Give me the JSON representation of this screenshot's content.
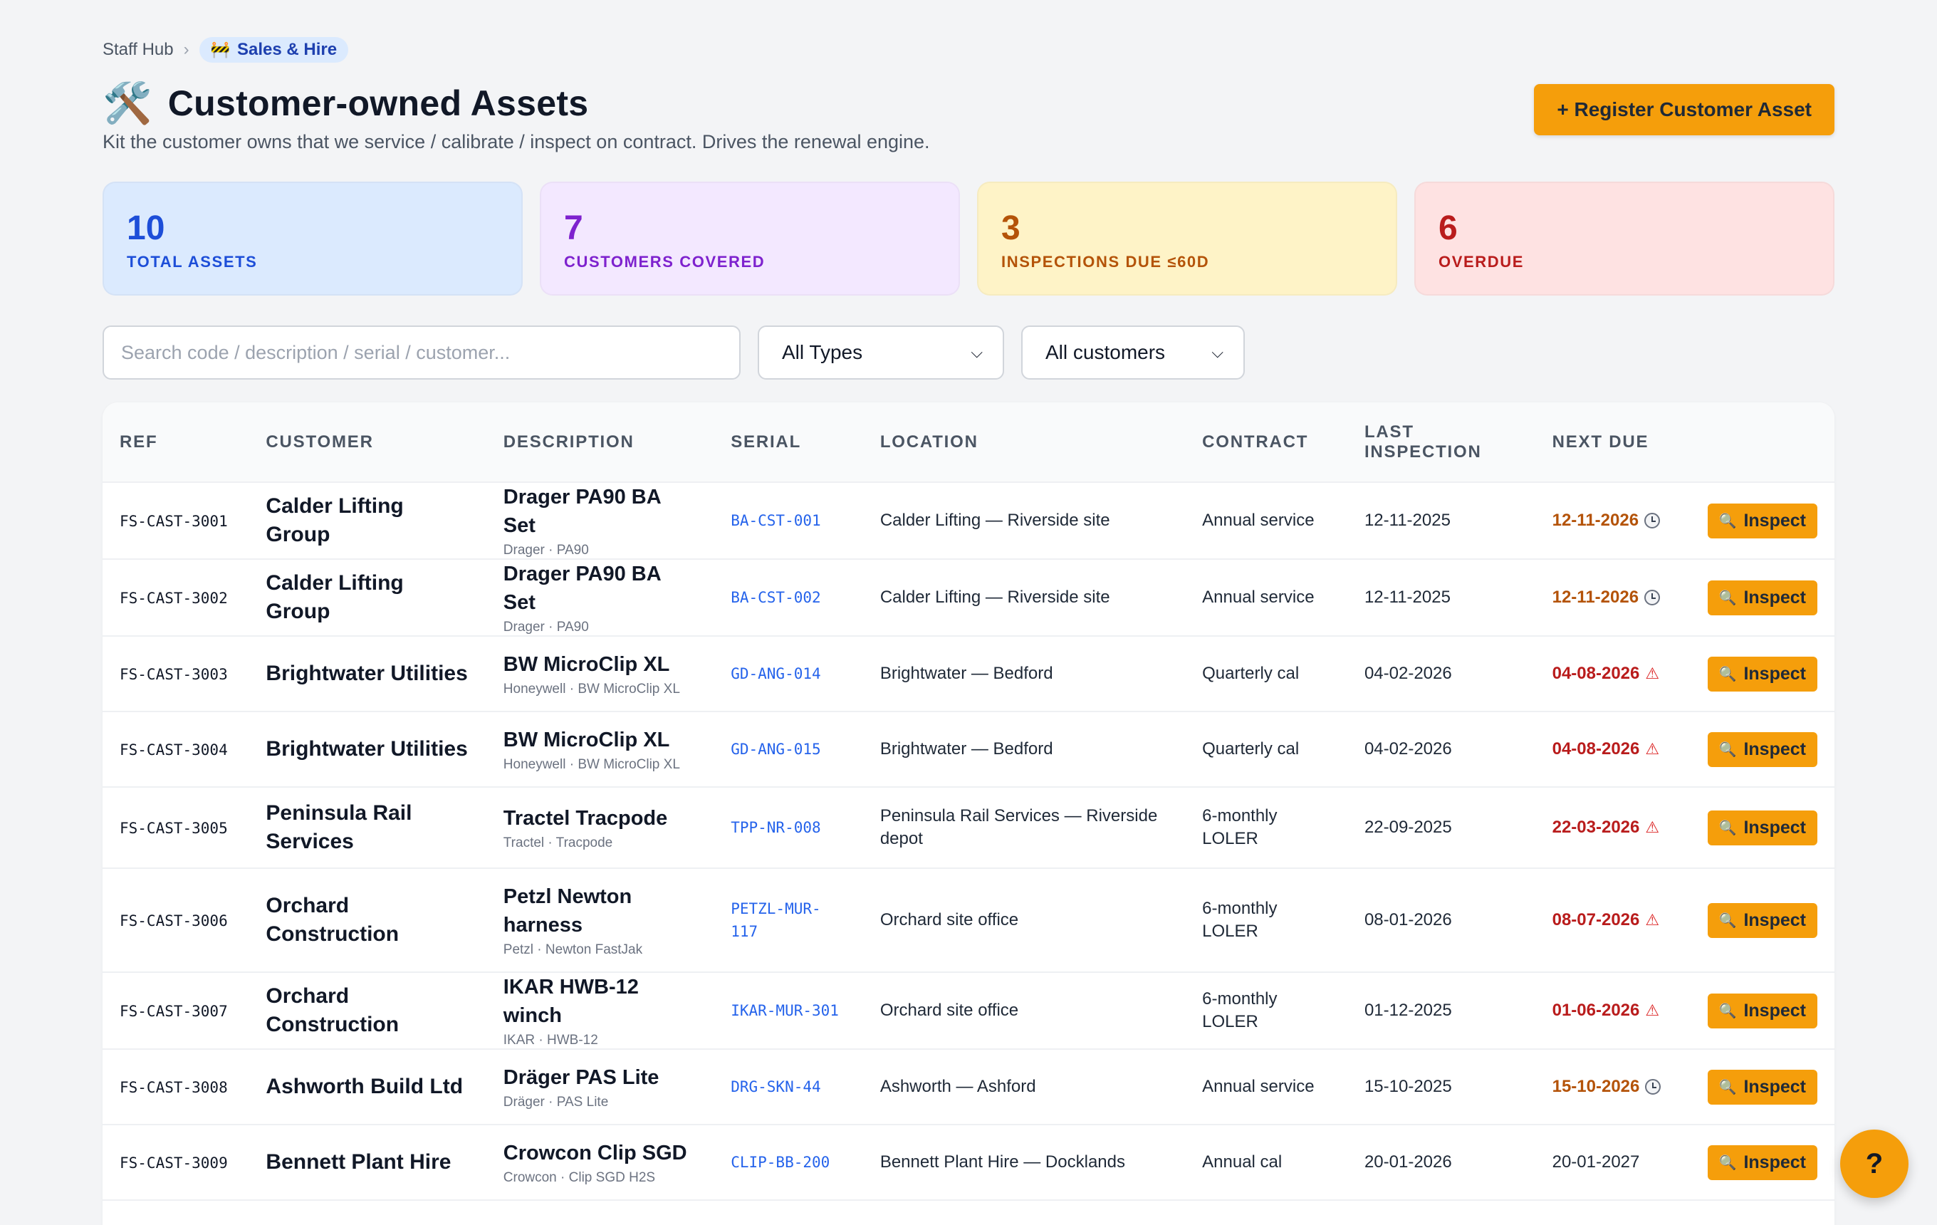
{
  "breadcrumb": {
    "home": "Staff Hub",
    "separator": "›",
    "current_icon": "construction-sign-icon",
    "current_glyph": "🚧",
    "current": "Sales & Hire"
  },
  "header": {
    "icon": "hammer-and-wrench-icon",
    "icon_glyph": "🛠️",
    "title": "Customer-owned Assets",
    "subtitle": "Kit the customer owns that we service / calibrate / inspect on contract. Drives the renewal engine.",
    "register_button": "+ Register Customer Asset"
  },
  "stats": [
    {
      "value": "10",
      "label": "TOTAL ASSETS",
      "bg": "#dbeafe",
      "color": "#1d4ed8"
    },
    {
      "value": "7",
      "label": "CUSTOMERS COVERED",
      "bg": "#f3e8ff",
      "color": "#7e22ce"
    },
    {
      "value": "3",
      "label": "INSPECTIONS DUE ≤60D",
      "bg": "#fef3c7",
      "color": "#b45309"
    },
    {
      "value": "6",
      "label": "OVERDUE",
      "bg": "#fee2e2",
      "color": "#b91c1c"
    }
  ],
  "filters": {
    "search_placeholder": "Search code / description / serial / customer...",
    "type_selected": "All Types",
    "customer_selected": "All customers",
    "chevron": "⌄"
  },
  "table": {
    "columns": [
      "REF",
      "CUSTOMER",
      "DESCRIPTION",
      "SERIAL",
      "LOCATION",
      "CONTRACT",
      "LAST INSPECTION",
      "NEXT DUE",
      ""
    ],
    "action_label": "Inspect",
    "action_icon": "magnifier-icon",
    "rows": [
      {
        "ref": "FS-CAST-3001",
        "customer": "Calder Lifting Group",
        "desc": "Drager PA90 BA Set",
        "sub": "Drager · PA90",
        "serial": "BA-CST-001",
        "location": "Calder Lifting — Riverside site",
        "contract": "Annual service",
        "last": "12-11-2025",
        "next": "12-11-2026",
        "status": "warn"
      },
      {
        "ref": "FS-CAST-3002",
        "customer": "Calder Lifting Group",
        "desc": "Drager PA90 BA Set",
        "sub": "Drager · PA90",
        "serial": "BA-CST-002",
        "location": "Calder Lifting — Riverside site",
        "contract": "Annual service",
        "last": "12-11-2025",
        "next": "12-11-2026",
        "status": "warn"
      },
      {
        "ref": "FS-CAST-3003",
        "customer": "Brightwater Utilities",
        "desc": "BW MicroClip XL",
        "sub": "Honeywell · BW MicroClip XL",
        "serial": "GD-ANG-014",
        "location": "Brightwater — Bedford",
        "contract": "Quarterly cal",
        "last": "04-02-2026",
        "next": "04-08-2026",
        "status": "over"
      },
      {
        "ref": "FS-CAST-3004",
        "customer": "Brightwater Utilities",
        "desc": "BW MicroClip XL",
        "sub": "Honeywell · BW MicroClip XL",
        "serial": "GD-ANG-015",
        "location": "Brightwater — Bedford",
        "contract": "Quarterly cal",
        "last": "04-02-2026",
        "next": "04-08-2026",
        "status": "over"
      },
      {
        "ref": "FS-CAST-3005",
        "customer": "Peninsula Rail Services",
        "desc": "Tractel Tracpode",
        "sub": "Tractel · Tracpode",
        "serial": "TPP-NR-008",
        "location": "Peninsula Rail Services — Riverside depot",
        "contract": "6-monthly LOLER",
        "last": "22-09-2025",
        "next": "22-03-2026",
        "status": "over",
        "height": "tall"
      },
      {
        "ref": "FS-CAST-3006",
        "customer": "Orchard Construction",
        "desc": "Petzl Newton harness",
        "sub": "Petzl · Newton FastJak",
        "serial": "PETZL-MUR-117",
        "location": "Orchard site office",
        "contract": "6-monthly LOLER",
        "last": "08-01-2026",
        "next": "08-07-2026",
        "status": "over",
        "height": "xtall"
      },
      {
        "ref": "FS-CAST-3007",
        "customer": "Orchard Construction",
        "desc": "IKAR HWB-12 winch",
        "sub": "IKAR · HWB-12",
        "serial": "IKAR-MUR-301",
        "location": "Orchard site office",
        "contract": "6-monthly LOLER",
        "last": "01-12-2025",
        "next": "01-06-2026",
        "status": "over"
      },
      {
        "ref": "FS-CAST-3008",
        "customer": "Ashworth Build Ltd",
        "desc": "Dräger PAS Lite",
        "sub": "Dräger · PAS Lite",
        "serial": "DRG-SKN-44",
        "location": "Ashworth — Ashford",
        "contract": "Annual service",
        "last": "15-10-2025",
        "next": "15-10-2026",
        "status": "warn"
      },
      {
        "ref": "FS-CAST-3009",
        "customer": "Bennett Plant Hire",
        "desc": "Crowcon Clip SGD",
        "sub": "Crowcon · Clip SGD H2S",
        "serial": "CLIP-BB-200",
        "location": "Bennett Plant Hire — Docklands",
        "contract": "Annual cal",
        "last": "20-01-2026",
        "next": "20-01-2027",
        "status": "ok"
      }
    ]
  },
  "help": {
    "label": "?"
  }
}
